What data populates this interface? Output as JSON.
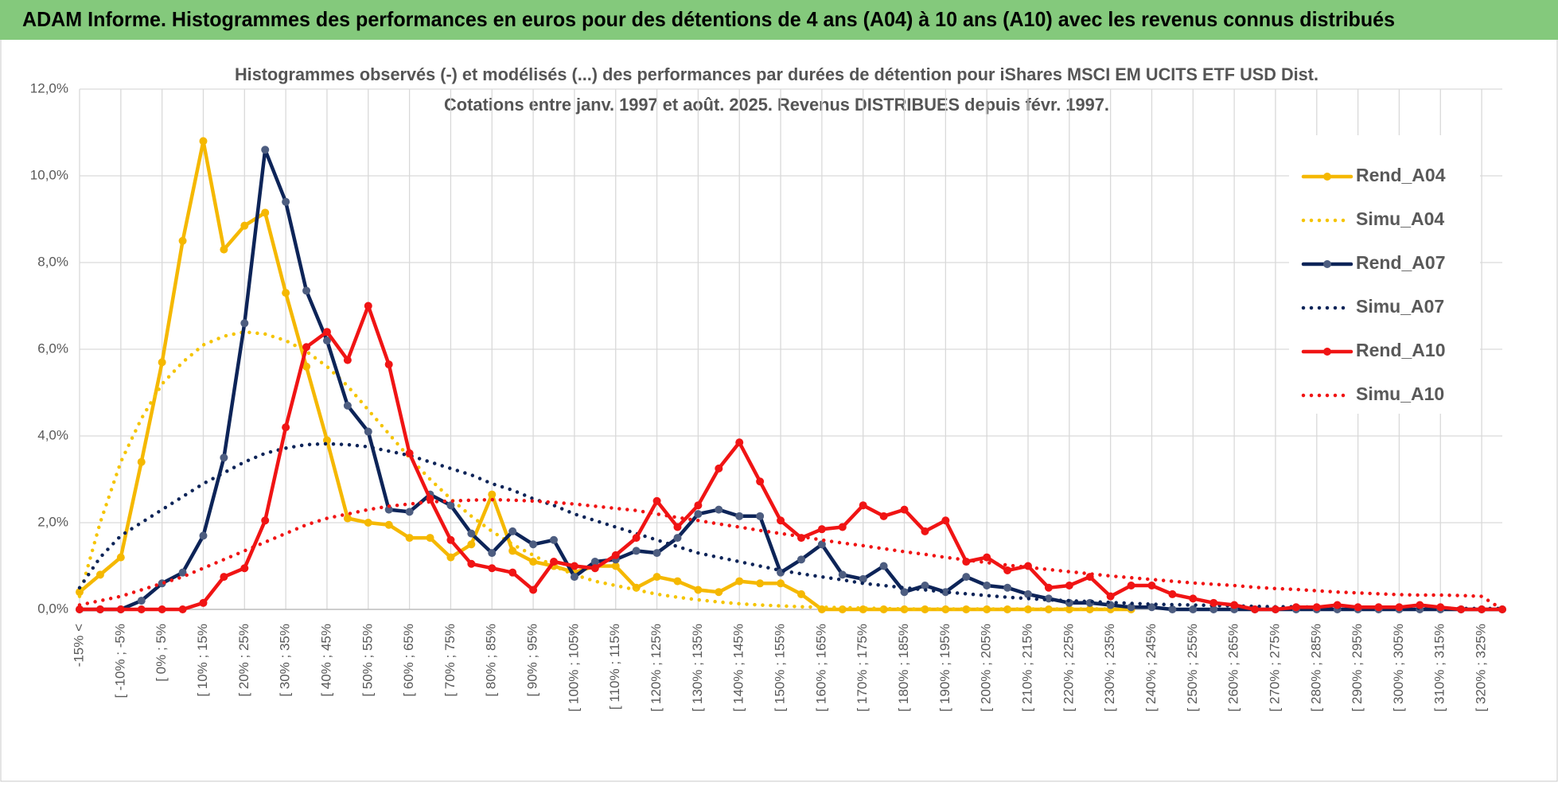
{
  "header": {
    "title": "ADAM Informe. Histogrammes des performances en euros pour des détentions de 4 ans (A04) à 10 ans (A10) avec les revenus connus distribués"
  },
  "chart_data": {
    "type": "line",
    "title": "Histogrammes observés (-) et modélisés (...) des performances par durées de détention pour iShares MSCI EM UCITS ETF USD Dist.",
    "subtitle": "Cotations entre janv. 1997 et août. 2025. Revenus DISTRIBUES depuis févr. 1997.",
    "categories": [
      "-15% <",
      null,
      "[ -10% ; -5%",
      null,
      "[ 0% ; 5%",
      null,
      "[ 10% ; 15%",
      null,
      "[ 20% ; 25%",
      null,
      "[ 30% ; 35%",
      null,
      "[ 40% ; 45%",
      null,
      "[ 50% ; 55%",
      null,
      "[ 60% ; 65%",
      null,
      "[ 70% ; 75%",
      null,
      "[ 80% ; 85%",
      null,
      "[ 90% ; 95%",
      null,
      "[ 100% ; 105%",
      null,
      "[ 110% ; 115%",
      null,
      "[ 120% ; 125%",
      null,
      "[ 130% ; 135%",
      null,
      "[ 140% ; 145%",
      null,
      "[ 150% ; 155%",
      null,
      "[ 160% ; 165%",
      null,
      "[ 170% ; 175%",
      null,
      "[ 180% ; 185%",
      null,
      "[ 190% ; 195%",
      null,
      "[ 200% ; 205%",
      null,
      "[ 210% ; 215%",
      null,
      "[ 220% ; 225%",
      null,
      "[ 230% ; 235%",
      null,
      "[ 240% ; 245%",
      null,
      "[ 250% ; 255%",
      null,
      "[ 260% ; 265%",
      null,
      "[ 270% ; 275%",
      null,
      "[ 280% ; 285%",
      null,
      "[ 290% ; 295%",
      null,
      "[ 300% ; 305%",
      null,
      "[ 310% ; 315%",
      null,
      "[ 320% ; 325%",
      null
    ],
    "series": [
      {
        "name": "Rend_A04",
        "color": "#f5b800",
        "dotted": false,
        "values": [
          0.4,
          0.8,
          1.2,
          3.4,
          5.7,
          8.5,
          10.8,
          8.3,
          8.85,
          9.15,
          7.3,
          5.6,
          3.9,
          2.1,
          2.0,
          1.95,
          1.65,
          1.65,
          1.2,
          1.5,
          2.65,
          1.35,
          1.1,
          1.0,
          0.85,
          1.0,
          1.0,
          0.5,
          0.75,
          0.65,
          0.45,
          0.4,
          0.65,
          0.6,
          0.6,
          0.35,
          0,
          0,
          0,
          0,
          0,
          0,
          0,
          0,
          0,
          0,
          0,
          0,
          0,
          0,
          0,
          0,
          null,
          null,
          null,
          null,
          null,
          null,
          null,
          null,
          null,
          null,
          null,
          null,
          null,
          null,
          null,
          null,
          null,
          null
        ]
      },
      {
        "name": "Simu_A04",
        "color": "#f5c400",
        "dotted": true,
        "values": [
          0.3,
          2.0,
          3.4,
          4.4,
          5.2,
          5.7,
          6.1,
          6.3,
          6.4,
          6.35,
          6.2,
          5.95,
          5.6,
          5.15,
          4.6,
          4.05,
          3.5,
          3.0,
          2.55,
          2.15,
          1.8,
          1.5,
          1.25,
          1.0,
          0.8,
          0.65,
          0.55,
          0.45,
          0.35,
          0.28,
          0.22,
          0.17,
          0.13,
          0.1,
          0.08,
          0.06,
          0.05,
          0.04,
          0.03,
          0.02,
          0.01,
          0.01,
          0.01,
          0.01,
          0.01,
          0.01,
          0.01,
          0.01,
          0.01,
          0.01,
          0.01,
          0.01,
          null,
          null,
          null,
          null,
          null,
          null,
          null,
          null,
          null,
          null,
          null,
          null,
          null,
          null,
          null,
          null,
          null,
          null
        ]
      },
      {
        "name": "Rend_A07",
        "color": "#0d2458",
        "dotted": false,
        "values": [
          0,
          0,
          0,
          0.2,
          0.6,
          0.85,
          1.7,
          3.5,
          6.6,
          10.6,
          9.4,
          7.35,
          6.2,
          4.7,
          4.1,
          2.3,
          2.25,
          2.65,
          2.4,
          1.75,
          1.3,
          1.8,
          1.5,
          1.6,
          0.75,
          1.1,
          1.15,
          1.35,
          1.3,
          1.65,
          2.2,
          2.3,
          2.15,
          2.15,
          0.85,
          1.15,
          1.5,
          0.8,
          0.7,
          1.0,
          0.4,
          0.55,
          0.4,
          0.75,
          0.55,
          0.5,
          0.35,
          0.25,
          0.15,
          0.15,
          0.1,
          0.05,
          0.05,
          0,
          0,
          0,
          0,
          0,
          0,
          0,
          0,
          0,
          0,
          0,
          0,
          0,
          0,
          0,
          0,
          0
        ]
      },
      {
        "name": "Simu_A07",
        "color": "#0d2458",
        "dotted": true,
        "values": [
          0.5,
          1.2,
          1.7,
          2.0,
          2.3,
          2.6,
          2.9,
          3.15,
          3.4,
          3.6,
          3.72,
          3.8,
          3.82,
          3.8,
          3.75,
          3.65,
          3.55,
          3.4,
          3.25,
          3.1,
          2.9,
          2.75,
          2.55,
          2.4,
          2.2,
          2.05,
          1.9,
          1.75,
          1.6,
          1.45,
          1.3,
          1.2,
          1.1,
          1.0,
          0.9,
          0.82,
          0.75,
          0.68,
          0.6,
          0.55,
          0.5,
          0.45,
          0.4,
          0.36,
          0.32,
          0.28,
          0.25,
          0.22,
          0.2,
          0.18,
          0.16,
          0.14,
          0.12,
          0.11,
          0.1,
          0.09,
          0.08,
          0.07,
          0.06,
          0.06,
          0.05,
          0.05,
          0.04,
          0.04,
          0.03,
          0.03,
          0.03,
          0.02,
          0.02,
          0.02
        ]
      },
      {
        "name": "Rend_A10",
        "color": "#f01414",
        "dotted": false,
        "values": [
          0,
          0,
          0,
          0,
          0,
          0,
          0.15,
          0.75,
          0.95,
          2.05,
          4.2,
          6.05,
          6.4,
          5.75,
          7.0,
          5.65,
          3.6,
          2.55,
          1.6,
          1.05,
          0.95,
          0.85,
          0.45,
          1.1,
          1.0,
          0.95,
          1.25,
          1.65,
          2.5,
          1.9,
          2.4,
          3.25,
          3.85,
          2.95,
          2.05,
          1.65,
          1.85,
          1.9,
          2.4,
          2.15,
          2.3,
          1.8,
          2.05,
          1.1,
          1.2,
          0.9,
          1.0,
          0.5,
          0.55,
          0.75,
          0.3,
          0.55,
          0.55,
          0.35,
          0.25,
          0.15,
          0.1,
          0,
          0,
          0.05,
          0.05,
          0.1,
          0.05,
          0.05,
          0.05,
          0.1,
          0.05,
          0,
          0,
          0
        ]
      },
      {
        "name": "Simu_A10",
        "color": "#f01414",
        "dotted": true,
        "values": [
          0.1,
          0.2,
          0.3,
          0.45,
          0.6,
          0.75,
          0.95,
          1.15,
          1.35,
          1.55,
          1.75,
          1.95,
          2.1,
          2.2,
          2.3,
          2.38,
          2.43,
          2.48,
          2.5,
          2.52,
          2.53,
          2.52,
          2.5,
          2.47,
          2.43,
          2.38,
          2.33,
          2.28,
          2.2,
          2.12,
          2.05,
          1.97,
          1.9,
          1.82,
          1.75,
          1.68,
          1.6,
          1.53,
          1.47,
          1.4,
          1.33,
          1.27,
          1.2,
          1.14,
          1.08,
          1.02,
          0.97,
          0.92,
          0.87,
          0.82,
          0.77,
          0.73,
          0.69,
          0.65,
          0.61,
          0.58,
          0.55,
          0.51,
          0.48,
          0.46,
          0.43,
          0.4,
          0.38,
          0.36,
          0.34,
          0.33,
          0.33,
          0.32,
          0.3,
          0
        ]
      }
    ],
    "ylim": [
      0,
      12
    ],
    "yticks": [
      {
        "value": 0,
        "label": "0,0%"
      },
      {
        "value": 2,
        "label": "2,0%"
      },
      {
        "value": 4,
        "label": "4,0%"
      },
      {
        "value": 6,
        "label": "6,0%"
      },
      {
        "value": 8,
        "label": "8,0%"
      },
      {
        "value": 10,
        "label": "10,0%"
      },
      {
        "value": 12,
        "label": "12,0%"
      }
    ],
    "grid": true,
    "legend": "right"
  }
}
